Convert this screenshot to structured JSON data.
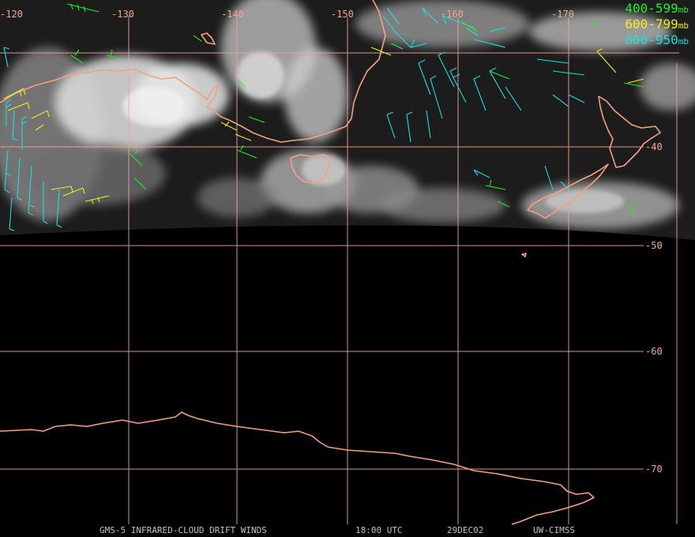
{
  "colors": {
    "grid": "#f0a890",
    "coast": "#f7a080",
    "band_400_599": "#22ee22",
    "band_600_799": "#eeee22",
    "band_800_950": "#22dddd",
    "footer": "#c0c0c0"
  },
  "longitude_labels": [
    "-120",
    "-130",
    "-140",
    "-150",
    "-160",
    "-170"
  ],
  "latitude_labels": [
    "-40",
    "-50",
    "-60",
    "-70"
  ],
  "legend": [
    {
      "range": "400-599",
      "unit": "mb",
      "color_key": "band_400_599"
    },
    {
      "range": "600-799",
      "unit": "mb",
      "color_key": "band_600_799"
    },
    {
      "range": "800-950",
      "unit": "mb",
      "color_key": "band_800_950"
    }
  ],
  "footer": {
    "product": "GMS-5 INFRARED-CLOUD DRIFT WINDS",
    "time": "18:00 UTC",
    "date": "29DEC02",
    "source": "UW-CIMSS"
  }
}
